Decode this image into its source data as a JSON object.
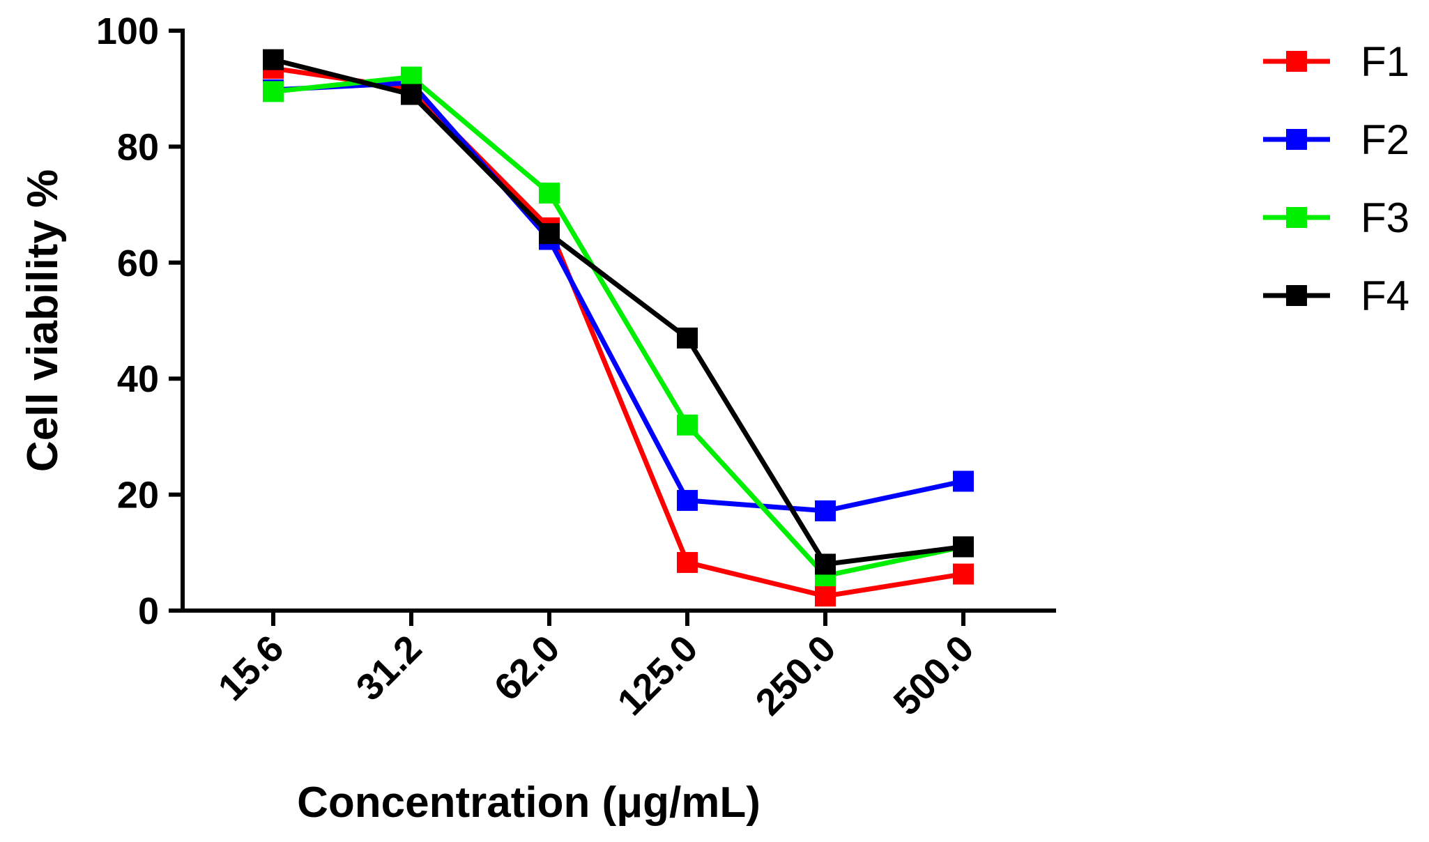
{
  "chart_data": {
    "type": "line",
    "title": "",
    "xlabel": "Concentration  (μg/mL)",
    "ylabel": "Cell viability %",
    "categories": [
      "15.6",
      "31.2",
      "62.0",
      "125.0",
      "250.0",
      "500.0"
    ],
    "ylim": [
      0,
      100
    ],
    "yticks": [
      0,
      20,
      40,
      60,
      80,
      100
    ],
    "grid": false,
    "legend_position": "top-right",
    "marker": "square",
    "series": [
      {
        "name": "F1",
        "color": "#ff0000",
        "values": [
          93.5,
          90,
          66,
          8.3,
          2.5,
          6.3
        ]
      },
      {
        "name": "F2",
        "color": "#0000ff",
        "values": [
          89.8,
          91,
          64,
          19,
          17.2,
          22.3
        ]
      },
      {
        "name": "F3",
        "color": "#00ee00",
        "values": [
          89.5,
          92,
          72,
          32,
          6,
          11
        ]
      },
      {
        "name": "F4",
        "color": "#000000",
        "values": [
          95,
          89,
          65,
          47,
          8,
          11
        ]
      }
    ]
  }
}
